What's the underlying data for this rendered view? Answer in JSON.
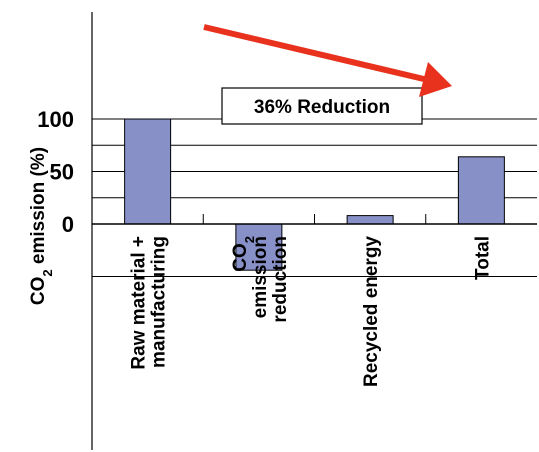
{
  "chart_data": {
    "type": "bar",
    "categories": [
      [
        "Raw material +",
        "manufacturing"
      ],
      [
        "CO2",
        "emission",
        "reduction"
      ],
      [
        "Recycled energy"
      ],
      [
        "Total"
      ]
    ],
    "values": [
      100,
      -44,
      8,
      64
    ],
    "xlabel": "",
    "ylabel": "CO2 emission (%)",
    "ylim": [
      -100,
      100
    ],
    "yticks_labeled": [
      0,
      50,
      100
    ],
    "grid_lines": [
      -50,
      25,
      50,
      75,
      100
    ],
    "grid": true,
    "bar_color": "#8890c8",
    "bar_edge_color": "#000000",
    "annotation": {
      "text": "36% Reduction",
      "arrow_color": "#e8321e",
      "arrow_from_category": "Raw material +",
      "arrow_to_category": "Total"
    }
  }
}
